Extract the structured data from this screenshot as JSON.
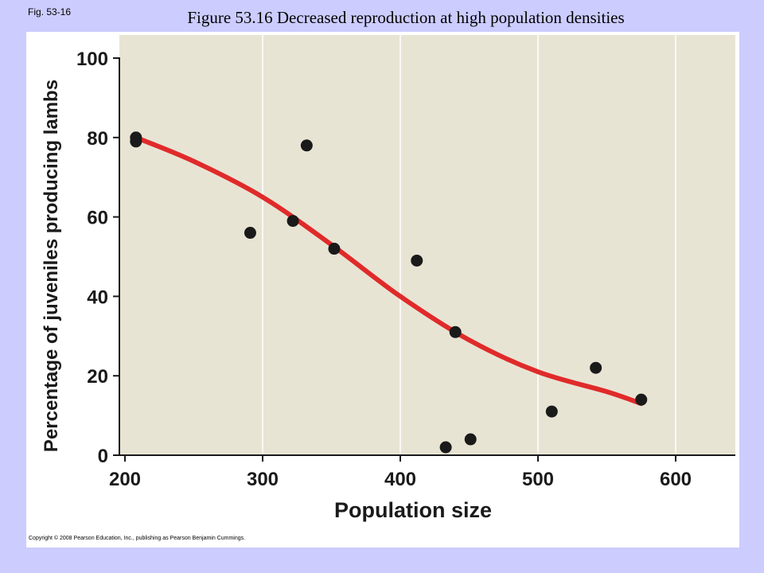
{
  "figure_label": "Fig. 53-16",
  "copyright": "Copyright © 2008 Pearson Education, Inc., publishing as Pearson Benjamin Cummings.",
  "colors": {
    "slide_background": "#ccccff",
    "panel_background": "#ffffff",
    "plot_background": "#e8e4d4",
    "gridline": "#ffffff",
    "curve": "#e02a2a",
    "points": "#1a1a1a"
  },
  "chart_data": {
    "type": "scatter",
    "title": "Figure 53.16 Decreased reproduction at high population densities",
    "xlabel": "Population size",
    "ylabel": "Percentage of juveniles producing lambs",
    "xlim": [
      200,
      640
    ],
    "ylim": [
      0,
      100
    ],
    "x_ticks": [
      "200",
      "300",
      "400",
      "500",
      "600"
    ],
    "y_ticks": [
      "0",
      "20",
      "40",
      "60",
      "80",
      "100"
    ],
    "grid": "vertical",
    "series": [
      {
        "kind": "points",
        "x": [
          208,
          208,
          291,
          322,
          332,
          352,
          412,
          433,
          440,
          451,
          510,
          542,
          575
        ],
        "y": [
          79,
          80,
          56,
          59,
          78,
          52,
          49,
          2,
          31,
          4,
          11,
          22,
          14
        ]
      },
      {
        "kind": "trend",
        "x": [
          208,
          250,
          300,
          350,
          400,
          450,
          500,
          550,
          575
        ],
        "y": [
          80,
          74,
          65,
          53,
          40,
          29,
          21,
          16,
          13
        ]
      }
    ]
  }
}
